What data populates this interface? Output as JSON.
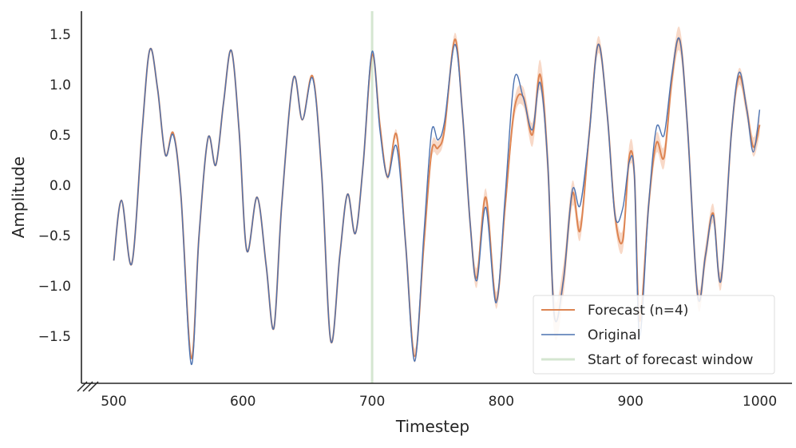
{
  "chart_data": {
    "type": "line",
    "title": "",
    "xlabel": "Timestep",
    "ylabel": "Amplitude",
    "xlim": [
      475,
      1025
    ],
    "ylim": [
      -1.97,
      1.73
    ],
    "x_ticks": [
      500,
      600,
      700,
      800,
      900,
      1000
    ],
    "x_tick_labels": [
      "500",
      "600",
      "700",
      "800",
      "900",
      "1000"
    ],
    "y_ticks": [
      1.5,
      1.0,
      0.5,
      0.0,
      -0.5,
      -1.0,
      -1.5
    ],
    "y_tick_labels": [
      "1.5",
      "1.0",
      "0.5",
      "0.0",
      "−0.5",
      "−1.0",
      "−1.5"
    ],
    "grid": false,
    "legend_position": "bottom-right",
    "forecast_start": 700,
    "series": [
      {
        "name": "Forecast (n=4)",
        "color": "#dd8452",
        "band_color": "#f5c9b0",
        "points": [
          [
            500,
            -0.75
          ],
          [
            506,
            -0.15
          ],
          [
            514,
            -0.78
          ],
          [
            522,
            0.55
          ],
          [
            528,
            1.35
          ],
          [
            534,
            0.95
          ],
          [
            540,
            0.3
          ],
          [
            546,
            0.52
          ],
          [
            552,
            -0.1
          ],
          [
            560,
            -1.72
          ],
          [
            566,
            -0.5
          ],
          [
            573,
            0.47
          ],
          [
            579,
            0.2
          ],
          [
            585,
            0.82
          ],
          [
            591,
            1.34
          ],
          [
            597,
            0.55
          ],
          [
            603,
            -0.65
          ],
          [
            611,
            -0.12
          ],
          [
            618,
            -0.8
          ],
          [
            624,
            -1.42
          ],
          [
            630,
            -0.2
          ],
          [
            639,
            1.06
          ],
          [
            646,
            0.65
          ],
          [
            654,
            1.08
          ],
          [
            661,
            0.1
          ],
          [
            668,
            -1.55
          ],
          [
            675,
            -0.7
          ],
          [
            681,
            -0.09
          ],
          [
            687,
            -0.48
          ],
          [
            693,
            0.2
          ],
          [
            700,
            1.3
          ],
          [
            706,
            0.6
          ],
          [
            712,
            0.08
          ],
          [
            719,
            0.5
          ],
          [
            726,
            -0.6
          ],
          [
            733,
            -1.7
          ],
          [
            740,
            -0.6
          ],
          [
            746,
            0.33
          ],
          [
            751,
            0.37
          ],
          [
            756,
            0.55
          ],
          [
            764,
            1.45
          ],
          [
            770,
            0.7
          ],
          [
            776,
            -0.4
          ],
          [
            781,
            -0.92
          ],
          [
            788,
            -0.12
          ],
          [
            796,
            -1.15
          ],
          [
            803,
            -0.2
          ],
          [
            810,
            0.75
          ],
          [
            817,
            0.88
          ],
          [
            824,
            0.5
          ],
          [
            830,
            1.1
          ],
          [
            836,
            0.2
          ],
          [
            841,
            -1.3
          ],
          [
            848,
            -0.95
          ],
          [
            855,
            -0.08
          ],
          [
            861,
            -0.45
          ],
          [
            868,
            0.5
          ],
          [
            875,
            1.4
          ],
          [
            882,
            0.7
          ],
          [
            888,
            -0.3
          ],
          [
            894,
            -0.55
          ],
          [
            899,
            0.28
          ],
          [
            903,
            0.1
          ],
          [
            907,
            -1.35
          ],
          [
            914,
            -0.2
          ],
          [
            920,
            0.42
          ],
          [
            926,
            0.28
          ],
          [
            932,
            1.05
          ],
          [
            938,
            1.45
          ],
          [
            944,
            0.6
          ],
          [
            952,
            -1.1
          ],
          [
            958,
            -0.7
          ],
          [
            964,
            -0.28
          ],
          [
            970,
            -0.95
          ],
          [
            978,
            0.5
          ],
          [
            984,
            1.08
          ],
          [
            990,
            0.75
          ],
          [
            995,
            0.38
          ],
          [
            1000,
            0.6
          ]
        ],
        "band": [
          [
            700,
            0.0
          ],
          [
            720,
            0.05
          ],
          [
            740,
            0.08
          ],
          [
            760,
            0.06
          ],
          [
            780,
            0.1
          ],
          [
            800,
            0.08
          ],
          [
            820,
            0.1
          ],
          [
            840,
            0.2
          ],
          [
            860,
            0.1
          ],
          [
            880,
            0.08
          ],
          [
            900,
            0.12
          ],
          [
            920,
            0.1
          ],
          [
            940,
            0.12
          ],
          [
            960,
            0.1
          ],
          [
            980,
            0.08
          ],
          [
            1000,
            0.1
          ]
        ]
      },
      {
        "name": "Original",
        "color": "#4c72b0",
        "points": [
          [
            500,
            -0.75
          ],
          [
            506,
            -0.15
          ],
          [
            514,
            -0.78
          ],
          [
            522,
            0.55
          ],
          [
            528,
            1.35
          ],
          [
            534,
            0.95
          ],
          [
            540,
            0.3
          ],
          [
            546,
            0.5
          ],
          [
            552,
            -0.1
          ],
          [
            560,
            -1.78
          ],
          [
            566,
            -0.5
          ],
          [
            573,
            0.47
          ],
          [
            579,
            0.2
          ],
          [
            585,
            0.82
          ],
          [
            591,
            1.34
          ],
          [
            597,
            0.55
          ],
          [
            603,
            -0.65
          ],
          [
            611,
            -0.12
          ],
          [
            618,
            -0.8
          ],
          [
            624,
            -1.42
          ],
          [
            630,
            -0.2
          ],
          [
            639,
            1.06
          ],
          [
            646,
            0.65
          ],
          [
            654,
            1.06
          ],
          [
            661,
            0.1
          ],
          [
            668,
            -1.55
          ],
          [
            675,
            -0.7
          ],
          [
            681,
            -0.09
          ],
          [
            687,
            -0.48
          ],
          [
            693,
            0.2
          ],
          [
            700,
            1.33
          ],
          [
            706,
            0.55
          ],
          [
            712,
            0.08
          ],
          [
            719,
            0.38
          ],
          [
            726,
            -0.6
          ],
          [
            733,
            -1.75
          ],
          [
            740,
            -0.5
          ],
          [
            746,
            0.53
          ],
          [
            751,
            0.45
          ],
          [
            756,
            0.63
          ],
          [
            764,
            1.4
          ],
          [
            770,
            0.7
          ],
          [
            776,
            -0.4
          ],
          [
            781,
            -0.95
          ],
          [
            788,
            -0.22
          ],
          [
            796,
            -1.17
          ],
          [
            803,
            -0.1
          ],
          [
            810,
            1.05
          ],
          [
            817,
            0.87
          ],
          [
            824,
            0.55
          ],
          [
            830,
            1.02
          ],
          [
            836,
            0.2
          ],
          [
            841,
            -1.3
          ],
          [
            848,
            -0.95
          ],
          [
            855,
            -0.05
          ],
          [
            861,
            -0.2
          ],
          [
            868,
            0.5
          ],
          [
            875,
            1.4
          ],
          [
            882,
            0.7
          ],
          [
            888,
            -0.3
          ],
          [
            894,
            -0.23
          ],
          [
            899,
            0.23
          ],
          [
            903,
            0.1
          ],
          [
            907,
            -1.5
          ],
          [
            914,
            -0.2
          ],
          [
            920,
            0.57
          ],
          [
            926,
            0.5
          ],
          [
            932,
            1.1
          ],
          [
            938,
            1.45
          ],
          [
            944,
            0.6
          ],
          [
            952,
            -1.1
          ],
          [
            958,
            -0.7
          ],
          [
            964,
            -0.3
          ],
          [
            970,
            -0.95
          ],
          [
            978,
            0.5
          ],
          [
            984,
            1.12
          ],
          [
            990,
            0.75
          ],
          [
            995,
            0.33
          ],
          [
            1000,
            0.75
          ]
        ]
      },
      {
        "name": "Start of forecast window",
        "color": "#d4e6d0"
      }
    ]
  }
}
